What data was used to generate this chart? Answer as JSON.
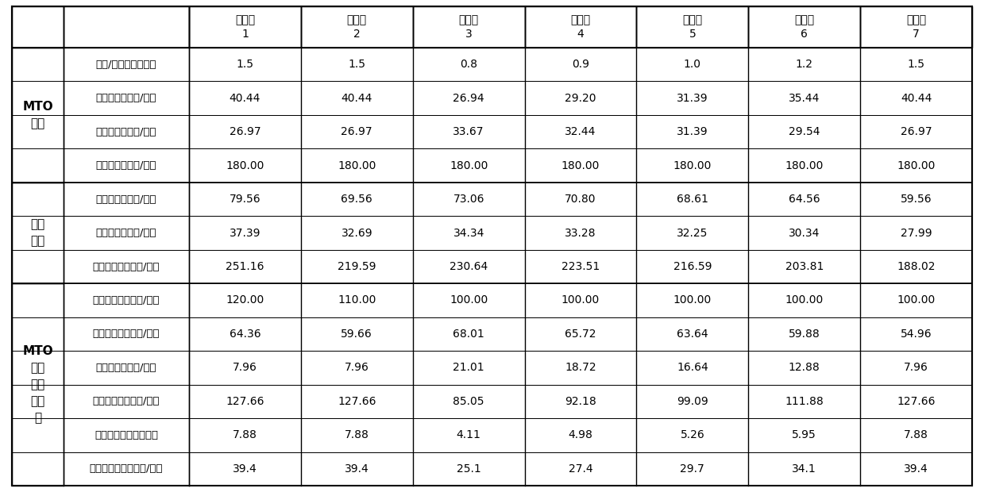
{
  "col_headers": [
    "实施例\n1",
    "实施例\n2",
    "实施例\n3",
    "实施例\n4",
    "实施例\n5",
    "实施例\n6",
    "实施例\n7"
  ],
  "groups": [
    {
      "label": "MTO\n装置",
      "rows": [
        [
          "乙烯/丙烯比（质量）",
          "1.5",
          "1.5",
          "0.8",
          "0.9",
          "1.0",
          "1.2",
          "1.5"
        ],
        [
          "乙烯产量（万吨/年）",
          "40.44",
          "40.44",
          "26.94",
          "29.20",
          "31.39",
          "35.44",
          "40.44"
        ],
        [
          "丙烯产量（万吨/年）",
          "26.97",
          "26.97",
          "33.67",
          "32.44",
          "31.39",
          "29.54",
          "26.97"
        ],
        [
          "甲醇消耗（万吨/年）",
          "180.00",
          "180.00",
          "180.00",
          "180.00",
          "180.00",
          "180.00",
          "180.00"
        ]
      ]
    },
    {
      "label": "乙烯\n装置",
      "rows": [
        [
          "乙烯产量（万吨/年）",
          "79.56",
          "69.56",
          "73.06",
          "70.80",
          "68.61",
          "64.56",
          "59.56"
        ],
        [
          "丙烯产量（万吨/年）",
          "37.39",
          "32.69",
          "34.34",
          "33.28",
          "32.25",
          "30.34",
          "27.99"
        ],
        [
          "石脑油消耗（万吨/年）",
          "251.16",
          "219.59",
          "230.64",
          "223.51",
          "216.59",
          "203.81",
          "188.02"
        ]
      ]
    },
    {
      "label": "MTO\n与乙\n烯装\n置耦\n合",
      "rows": [
        [
          "乙烯总产量（万吨/年）",
          "120.00",
          "110.00",
          "100.00",
          "100.00",
          "100.00",
          "100.00",
          "100.00"
        ],
        [
          "丙烯总产量（万吨/年）",
          "64.36",
          "59.66",
          "68.01",
          "65.72",
          "63.64",
          "59.88",
          "54.96"
        ],
        [
          "增产丙烯（万吨/年）",
          "7.96",
          "7.96",
          "21.01",
          "18.72",
          "16.64",
          "12.88",
          "7.96"
        ],
        [
          "少投石脑油（万吨/年）",
          "127.66",
          "127.66",
          "85.05",
          "92.18",
          "99.09",
          "111.88",
          "127.66"
        ],
        [
          "节约工程投资（亿元）",
          "7.88",
          "7.88",
          "4.11",
          "4.98",
          "5.26",
          "5.95",
          "7.88"
        ],
        [
          "节省运行费用（亿元/年）",
          "39.4",
          "39.4",
          "25.1",
          "27.4",
          "29.7",
          "34.1",
          "39.4"
        ]
      ]
    }
  ],
  "bg_color": "#ffffff",
  "line_color": "#000000",
  "text_color": "#000000"
}
